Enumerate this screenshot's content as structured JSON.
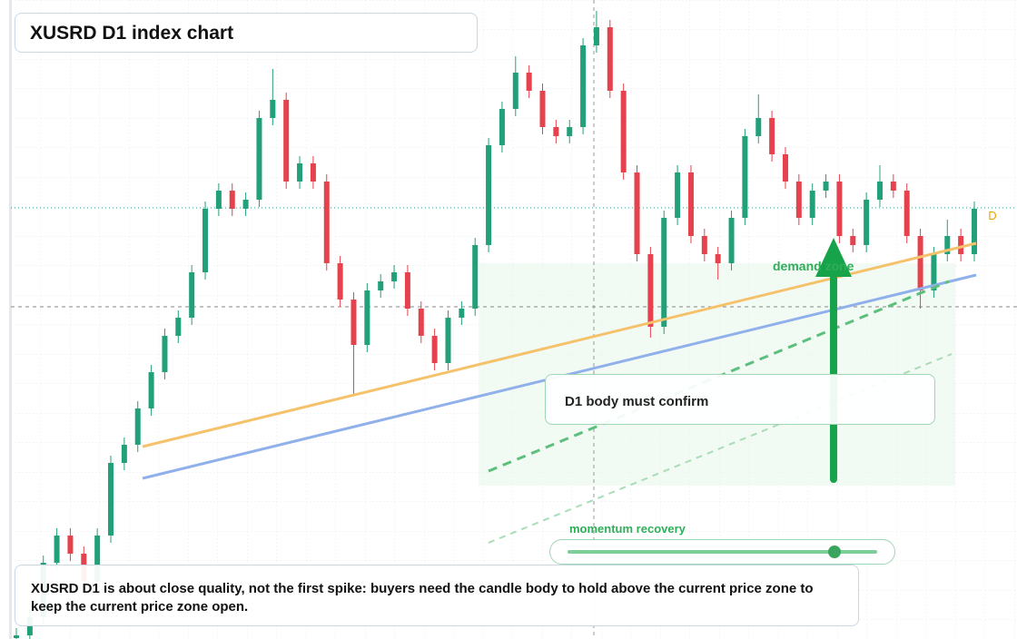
{
  "chart_data": {
    "type": "candlestick",
    "title": "XUSRD D1 index chart",
    "up_color": "#22a07a",
    "down_color": "#e5424d",
    "ylim": [
      0,
      704
    ],
    "candles": [
      [
        1,
        12,
        0,
        4
      ],
      [
        4,
        32,
        0,
        24
      ],
      [
        24,
        92,
        16,
        84
      ],
      [
        84,
        122,
        76,
        114
      ],
      [
        114,
        122,
        86,
        94
      ],
      [
        94,
        102,
        56,
        64
      ],
      [
        64,
        122,
        56,
        114
      ],
      [
        114,
        202,
        106,
        194
      ],
      [
        194,
        222,
        186,
        214
      ],
      [
        214,
        262,
        206,
        254
      ],
      [
        254,
        302,
        246,
        294
      ],
      [
        294,
        342,
        286,
        334
      ],
      [
        334,
        362,
        326,
        354
      ],
      [
        354,
        412,
        346,
        404
      ],
      [
        404,
        482,
        396,
        474
      ],
      [
        474,
        502,
        466,
        494
      ],
      [
        494,
        502,
        466,
        474
      ],
      [
        474,
        492,
        466,
        484
      ],
      [
        484,
        582,
        476,
        574
      ],
      [
        574,
        628,
        566,
        594
      ],
      [
        594,
        602,
        496,
        504
      ],
      [
        504,
        532,
        496,
        524
      ],
      [
        524,
        532,
        496,
        504
      ],
      [
        504,
        512,
        406,
        414
      ],
      [
        414,
        422,
        366,
        374
      ],
      [
        374,
        382,
        268,
        324
      ],
      [
        324,
        392,
        316,
        384
      ],
      [
        384,
        402,
        376,
        394
      ],
      [
        394,
        412,
        386,
        404
      ],
      [
        404,
        412,
        356,
        364
      ],
      [
        364,
        372,
        326,
        334
      ],
      [
        334,
        342,
        296,
        304
      ],
      [
        304,
        362,
        296,
        354
      ],
      [
        354,
        372,
        346,
        364
      ],
      [
        364,
        442,
        356,
        434
      ],
      [
        434,
        552,
        426,
        544
      ],
      [
        544,
        592,
        536,
        584
      ],
      [
        584,
        642,
        576,
        624
      ],
      [
        624,
        632,
        596,
        604
      ],
      [
        604,
        612,
        556,
        564
      ],
      [
        564,
        572,
        546,
        554
      ],
      [
        554,
        572,
        546,
        564
      ],
      [
        564,
        662,
        556,
        654
      ],
      [
        654,
        692,
        646,
        674
      ],
      [
        674,
        682,
        596,
        604
      ],
      [
        604,
        612,
        506,
        514
      ],
      [
        514,
        522,
        416,
        424
      ],
      [
        424,
        432,
        332,
        344
      ],
      [
        344,
        472,
        336,
        464
      ],
      [
        464,
        522,
        456,
        514
      ],
      [
        514,
        522,
        436,
        444
      ],
      [
        444,
        452,
        416,
        424
      ],
      [
        424,
        432,
        396,
        414
      ],
      [
        414,
        472,
        406,
        464
      ],
      [
        464,
        562,
        456,
        554
      ],
      [
        554,
        600,
        546,
        574
      ],
      [
        574,
        582,
        526,
        534
      ],
      [
        534,
        542,
        496,
        504
      ],
      [
        504,
        512,
        456,
        464
      ],
      [
        464,
        502,
        456,
        494
      ],
      [
        494,
        512,
        486,
        504
      ],
      [
        504,
        512,
        436,
        444
      ],
      [
        444,
        452,
        426,
        434
      ],
      [
        434,
        492,
        426,
        484
      ],
      [
        484,
        522,
        476,
        504
      ],
      [
        504,
        512,
        486,
        494
      ],
      [
        494,
        502,
        436,
        444
      ],
      [
        444,
        452,
        364,
        384
      ],
      [
        384,
        432,
        376,
        424
      ],
      [
        424,
        462,
        416,
        444
      ],
      [
        444,
        452,
        416,
        424
      ],
      [
        424,
        482,
        416,
        474
      ]
    ],
    "price_label": "D",
    "zone_label": "demand zone",
    "callout": "D1 body must confirm",
    "slider_label": "momentum recovery",
    "note": "XUSRD D1 is about close quality, not the first spike: buyers need the candle body to hold above the current price zone to keep the current price zone open."
  }
}
